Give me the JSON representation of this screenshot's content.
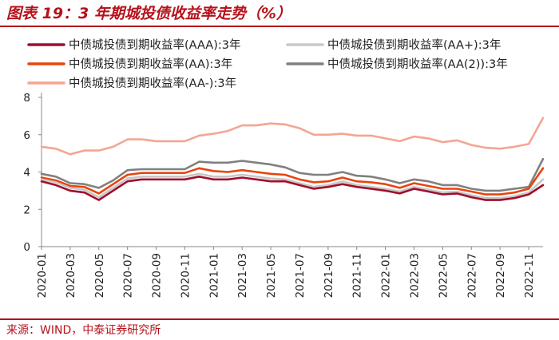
{
  "header": {
    "title": "图表 19：3 年期城投债收益率走势（%）"
  },
  "footer": {
    "source": "来源：WIND，中泰证券研究所"
  },
  "chart_data": {
    "type": "line",
    "title": "图表 19：3 年期城投债收益率走势（%）",
    "xlabel": "",
    "ylabel": "",
    "ylim": [
      0,
      8
    ],
    "yticks": [
      "0",
      "2",
      "4",
      "6",
      "8"
    ],
    "x": [
      "2020-01",
      "2020-02",
      "2020-03",
      "2020-04",
      "2020-05",
      "2020-06",
      "2020-07",
      "2020-08",
      "2020-09",
      "2020-10",
      "2020-11",
      "2020-12",
      "2021-01",
      "2021-02",
      "2021-03",
      "2021-04",
      "2021-05",
      "2021-06",
      "2021-07",
      "2021-08",
      "2021-09",
      "2021-10",
      "2021-11",
      "2021-12",
      "2022-01",
      "2022-02",
      "2022-03",
      "2022-04",
      "2022-05",
      "2022-06",
      "2022-07",
      "2022-08",
      "2022-09",
      "2022-10",
      "2022-11",
      "2022-12"
    ],
    "xticks": [
      "2020-01",
      "2020-03",
      "2020-05",
      "2020-07",
      "2020-09",
      "2020-11",
      "2021-01",
      "2021-03",
      "2021-05",
      "2021-07",
      "2021-09",
      "2021-11",
      "2022-01",
      "2022-03",
      "2022-05",
      "2022-07",
      "2022-09",
      "2022-11"
    ],
    "legend_position": "top",
    "series": [
      {
        "name": "中债城投债到期收益率(AAA):3年",
        "color": "#a10e2b",
        "values": [
          3.5,
          3.3,
          3.0,
          2.9,
          2.5,
          3.0,
          3.5,
          3.6,
          3.6,
          3.6,
          3.6,
          3.75,
          3.6,
          3.6,
          3.7,
          3.6,
          3.5,
          3.5,
          3.3,
          3.1,
          3.2,
          3.35,
          3.2,
          3.1,
          3.0,
          2.85,
          3.1,
          2.95,
          2.8,
          2.85,
          2.65,
          2.5,
          2.5,
          2.6,
          2.8,
          3.3
        ]
      },
      {
        "name": "中债城投债到期收益率(AA+):3年",
        "color": "#c8c8c8",
        "values": [
          3.6,
          3.45,
          3.15,
          3.05,
          2.65,
          3.15,
          3.65,
          3.75,
          3.75,
          3.75,
          3.75,
          3.9,
          3.75,
          3.75,
          3.85,
          3.75,
          3.65,
          3.6,
          3.4,
          3.2,
          3.3,
          3.5,
          3.3,
          3.2,
          3.1,
          2.95,
          3.2,
          3.05,
          2.9,
          2.95,
          2.75,
          2.6,
          2.6,
          2.7,
          2.9,
          3.6
        ]
      },
      {
        "name": "中债城投债到期收益率(AA):3年",
        "color": "#e8440e",
        "values": [
          3.7,
          3.55,
          3.25,
          3.2,
          2.85,
          3.35,
          3.85,
          3.95,
          3.95,
          3.95,
          3.95,
          4.2,
          4.05,
          4.0,
          4.1,
          4.0,
          3.9,
          3.85,
          3.6,
          3.45,
          3.5,
          3.7,
          3.5,
          3.45,
          3.35,
          3.15,
          3.4,
          3.25,
          3.1,
          3.1,
          2.95,
          2.8,
          2.8,
          2.9,
          3.1,
          4.2
        ]
      },
      {
        "name": "中债城投债到期收益率(AA(2)):3年",
        "color": "#808080",
        "values": [
          3.9,
          3.75,
          3.4,
          3.35,
          3.15,
          3.55,
          4.1,
          4.15,
          4.15,
          4.15,
          4.15,
          4.55,
          4.5,
          4.5,
          4.6,
          4.5,
          4.4,
          4.25,
          3.95,
          3.85,
          3.85,
          4.0,
          3.8,
          3.75,
          3.6,
          3.4,
          3.6,
          3.5,
          3.3,
          3.3,
          3.1,
          3.0,
          3.0,
          3.1,
          3.2,
          4.7
        ]
      },
      {
        "name": "中债城投债到期收益率(AA-):3年",
        "color": "#f4a593",
        "values": [
          5.35,
          5.25,
          4.95,
          5.15,
          5.15,
          5.35,
          5.75,
          5.75,
          5.65,
          5.65,
          5.65,
          5.95,
          6.05,
          6.2,
          6.5,
          6.5,
          6.6,
          6.55,
          6.35,
          6.0,
          6.0,
          6.05,
          5.95,
          5.95,
          5.8,
          5.65,
          5.9,
          5.8,
          5.6,
          5.7,
          5.45,
          5.3,
          5.25,
          5.35,
          5.5,
          6.9
        ]
      }
    ]
  }
}
